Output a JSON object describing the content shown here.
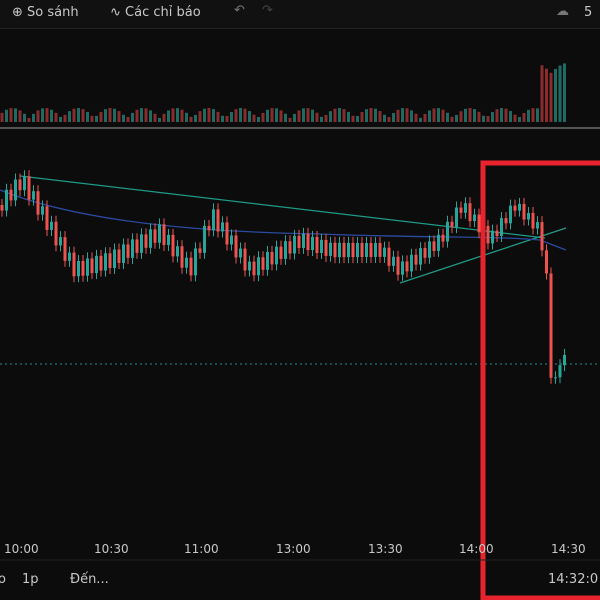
{
  "toolbar": {
    "compare": "So sánh",
    "indicators": "Các chỉ báo",
    "count": "5"
  },
  "time_axis": [
    "10:00",
    "10:30",
    "11:00",
    "13:00",
    "13:30",
    "14:00",
    "14:30"
  ],
  "bottom_bar": {
    "range_partial": "o",
    "interval": "1p",
    "goto": "Đến...",
    "clock": "14:32:0"
  }
}
